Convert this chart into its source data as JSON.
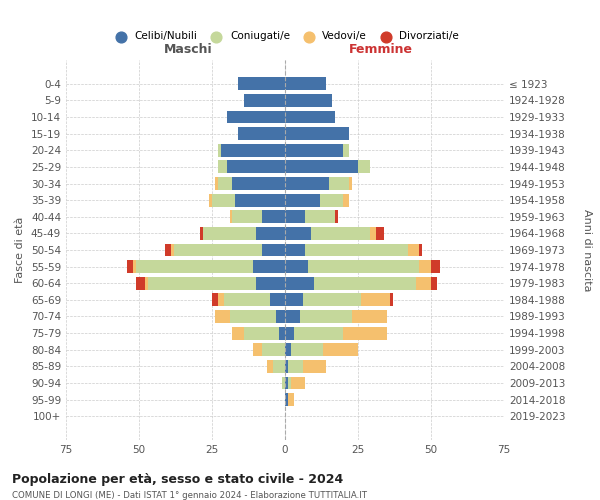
{
  "age_groups": [
    "0-4",
    "5-9",
    "10-14",
    "15-19",
    "20-24",
    "25-29",
    "30-34",
    "35-39",
    "40-44",
    "45-49",
    "50-54",
    "55-59",
    "60-64",
    "65-69",
    "70-74",
    "75-79",
    "80-84",
    "85-89",
    "90-94",
    "95-99",
    "100+"
  ],
  "birth_years": [
    "2019-2023",
    "2014-2018",
    "2009-2013",
    "2004-2008",
    "1999-2003",
    "1994-1998",
    "1989-1993",
    "1984-1988",
    "1979-1983",
    "1974-1978",
    "1969-1973",
    "1964-1968",
    "1959-1963",
    "1954-1958",
    "1949-1953",
    "1944-1948",
    "1939-1943",
    "1934-1938",
    "1929-1933",
    "1924-1928",
    "≤ 1923"
  ],
  "males": {
    "celibi": [
      16,
      14,
      20,
      16,
      22,
      20,
      18,
      17,
      8,
      10,
      8,
      11,
      10,
      5,
      3,
      2,
      0,
      0,
      0,
      0,
      0
    ],
    "coniugati": [
      0,
      0,
      0,
      0,
      1,
      3,
      5,
      8,
      10,
      18,
      30,
      40,
      37,
      16,
      16,
      12,
      8,
      4,
      1,
      0,
      0
    ],
    "vedovi": [
      0,
      0,
      0,
      0,
      0,
      0,
      1,
      1,
      1,
      0,
      1,
      1,
      1,
      2,
      5,
      4,
      3,
      2,
      0,
      0,
      0
    ],
    "divorziati": [
      0,
      0,
      0,
      0,
      0,
      0,
      0,
      0,
      0,
      1,
      2,
      2,
      3,
      2,
      0,
      0,
      0,
      0,
      0,
      0,
      0
    ]
  },
  "females": {
    "nubili": [
      14,
      16,
      17,
      22,
      20,
      25,
      15,
      12,
      7,
      9,
      7,
      8,
      10,
      6,
      5,
      3,
      2,
      1,
      1,
      1,
      0
    ],
    "coniugate": [
      0,
      0,
      0,
      0,
      2,
      4,
      7,
      8,
      10,
      20,
      35,
      38,
      35,
      20,
      18,
      17,
      11,
      5,
      1,
      0,
      0
    ],
    "vedove": [
      0,
      0,
      0,
      0,
      0,
      0,
      1,
      2,
      0,
      2,
      4,
      4,
      5,
      10,
      12,
      15,
      12,
      8,
      5,
      2,
      0
    ],
    "divorziate": [
      0,
      0,
      0,
      0,
      0,
      0,
      0,
      0,
      1,
      3,
      1,
      3,
      2,
      1,
      0,
      0,
      0,
      0,
      0,
      0,
      0
    ]
  },
  "colors": {
    "celibi_nubili": "#4472a8",
    "coniugati": "#c5d89b",
    "vedovi": "#f5c06e",
    "divorziati": "#d03b2a"
  },
  "xlim": 75,
  "title": "Popolazione per età, sesso e stato civile - 2024",
  "subtitle": "COMUNE DI LONGI (ME) - Dati ISTAT 1° gennaio 2024 - Elaborazione TUTTITALIA.IT",
  "ylabel_left": "Fasce di età",
  "ylabel_right": "Anni di nascita",
  "xlabel_left": "Maschi",
  "xlabel_right": "Femmine",
  "legend_labels": [
    "Celibi/Nubili",
    "Coniugati/e",
    "Vedovi/e",
    "Divorziati/e"
  ]
}
